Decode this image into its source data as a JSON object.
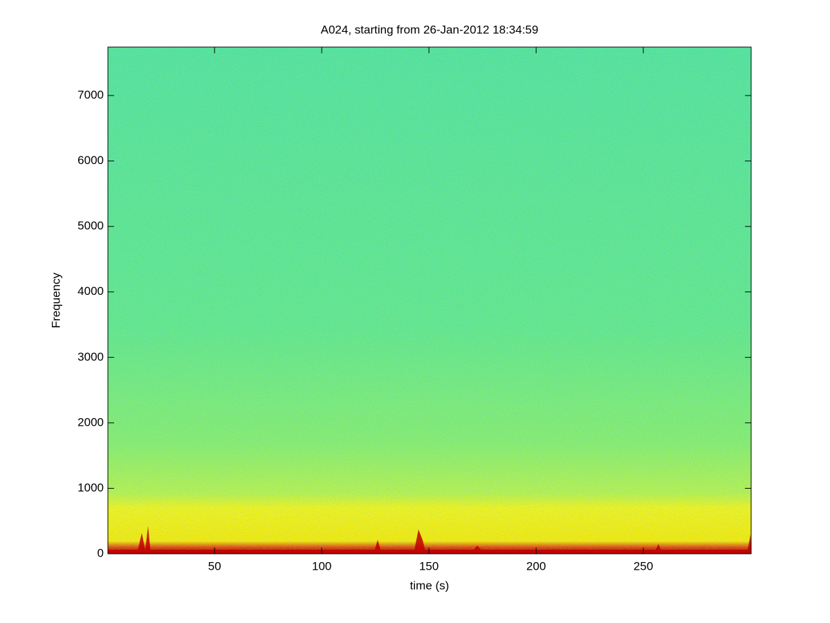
{
  "chart_data": {
    "type": "spectrogram",
    "title": "A024, starting from 26-Jan-2012 18:34:59",
    "x_label": "time (s)",
    "y_label": "Frequency",
    "xlim": [
      0.25,
      300.3
    ],
    "ylim": [
      0,
      7740
    ],
    "xticks": [
      50,
      100,
      150,
      200,
      250
    ],
    "yticks": [
      0,
      1000,
      2000,
      3000,
      4000,
      5000,
      6000,
      7000
    ]
  }
}
